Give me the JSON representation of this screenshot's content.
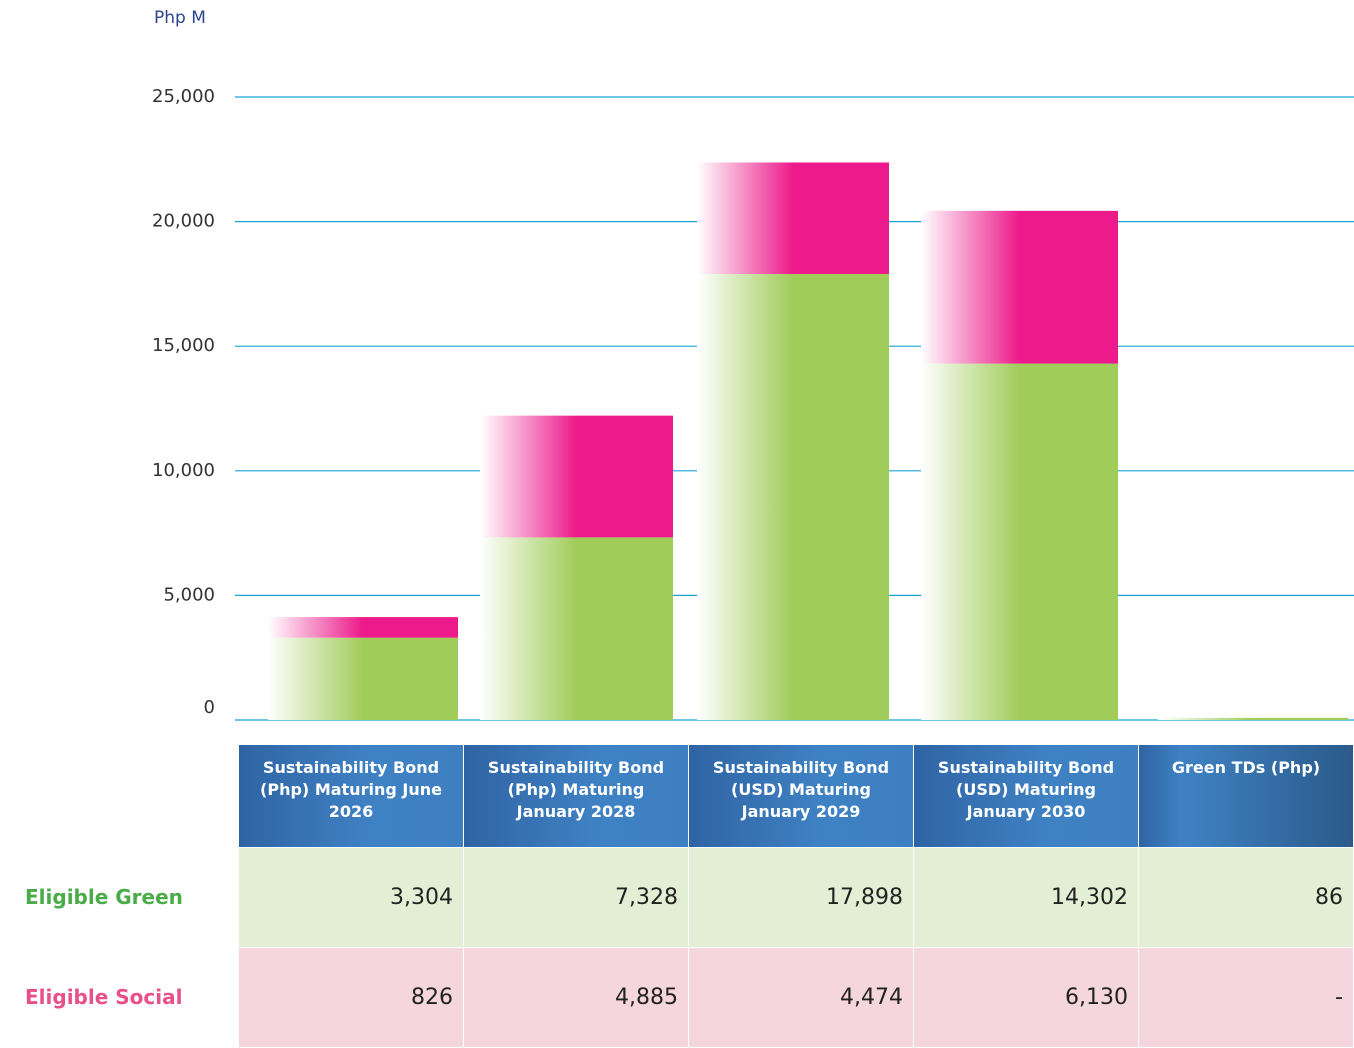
{
  "chart_data": {
    "type": "bar",
    "stacked": true,
    "y_axis_label": "Php M",
    "categories": [
      "Sustainability Bond (Php) Maturing June 2026",
      "Sustainability Bond (Php) Maturing January 2028",
      "Sustainability Bond (USD) Maturing January 2029",
      "Sustainability Bond (USD) Maturing January 2030",
      "Green TDs (Php)"
    ],
    "series": [
      {
        "name": "Eligible Green",
        "color": "#a0cc5a",
        "label_color": "#4aac48",
        "row_color": "#e2efd4",
        "values": [
          3304,
          7328,
          17898,
          14302,
          86
        ],
        "value_labels": [
          "3,304",
          "7,328",
          "17,898",
          "14,302",
          "86"
        ]
      },
      {
        "name": "Eligible Social",
        "color": "#ec1a8a",
        "label_color": "#e8508a",
        "row_color": "#f5d5de",
        "values": [
          826,
          4885,
          4474,
          6130,
          null
        ],
        "value_labels": [
          "826",
          "4,885",
          "4,474",
          "6,130",
          "-"
        ]
      }
    ],
    "ylim": [
      0,
      25000
    ],
    "yticks": [
      0,
      {
        "value": 5000,
        "label": "5,000"
      },
      {
        "value": 10000,
        "label": "10,000"
      },
      {
        "value": 15000,
        "label": "15,000"
      },
      {
        "value": 20000,
        "label": "20,000"
      },
      {
        "value": 25000,
        "label": "25,000"
      }
    ],
    "grid": true,
    "grid_color": "#1aa4d8"
  }
}
